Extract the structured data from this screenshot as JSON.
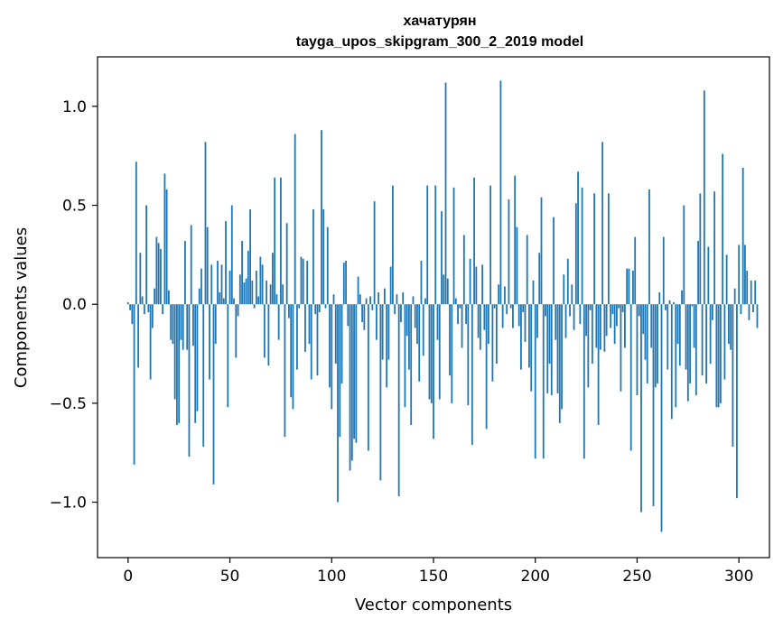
{
  "chart_data": {
    "type": "bar",
    "title": "хачатурян",
    "subtitle": "tayga_upos_skipgram_300_2_2019 model",
    "xlabel": "Vector components",
    "ylabel": "Components values",
    "xlim": [
      -15,
      315
    ],
    "ylim": [
      -1.28,
      1.25
    ],
    "xticks": [
      0,
      50,
      100,
      150,
      200,
      250,
      300
    ],
    "xtick_labels": [
      "0",
      "50",
      "100",
      "150",
      "200",
      "250",
      "300"
    ],
    "yticks": [
      -1.0,
      -0.5,
      0.0,
      0.5,
      1.0
    ],
    "ytick_labels": [
      "−1.0",
      "−0.5",
      "0.0",
      "0.5",
      "1.0"
    ],
    "grid": false,
    "bar_color": "#1f77b4",
    "series": [
      {
        "values": [
          0.01,
          -0.03,
          -0.1,
          -0.81,
          0.72,
          -0.32,
          0.26,
          0.04,
          -0.05,
          0.5,
          -0.04,
          -0.38,
          -0.12,
          0.08,
          0.34,
          0.31,
          0.28,
          -0.05,
          0.66,
          0.58,
          0.07,
          -0.18,
          -0.2,
          -0.48,
          -0.61,
          -0.6,
          -0.18,
          -0.23,
          0.32,
          -0.23,
          -0.77,
          0.4,
          -0.21,
          -0.6,
          -0.54,
          0.08,
          0.18,
          -0.72,
          0.82,
          0.39,
          -0.38,
          0.2,
          -0.91,
          -0.2,
          0.22,
          0.06,
          0.2,
          0.03,
          0.42,
          -0.52,
          0.17,
          0.5,
          0.03,
          -0.27,
          -0.06,
          0.15,
          0.32,
          0.11,
          0.13,
          0.27,
          0.48,
          0.12,
          -0.02,
          0.17,
          0.04,
          0.24,
          0.2,
          -0.27,
          0.12,
          -0.31,
          0.1,
          0.26,
          0.64,
          0.05,
          -0.18,
          0.64,
          0.1,
          -0.67,
          0.41,
          -0.07,
          -0.47,
          -0.53,
          0.86,
          -0.33,
          -0.02,
          0.24,
          0.23,
          -0.24,
          0.22,
          -0.2,
          -0.38,
          0.48,
          -0.05,
          -0.36,
          -0.04,
          0.88,
          0.48,
          -0.02,
          0.39,
          -0.42,
          -0.53,
          0.05,
          -0.3,
          -1.0,
          -0.67,
          -0.4,
          0.21,
          0.22,
          -0.11,
          -0.84,
          -0.79,
          -0.68,
          -0.7,
          0.14,
          0.05,
          -0.09,
          -0.13,
          0.03,
          -0.74,
          0.04,
          -0.03,
          0.52,
          -0.18,
          0.06,
          -0.89,
          -0.28,
          0.08,
          -0.42,
          -0.28,
          0.19,
          0.6,
          -0.05,
          0.05,
          -0.97,
          -0.09,
          0.06,
          -0.52,
          -0.16,
          -0.33,
          -0.61,
          0.04,
          -0.12,
          -0.2,
          -0.39,
          0.22,
          -0.26,
          0.03,
          0.6,
          -0.48,
          -0.5,
          -0.68,
          0.6,
          -0.18,
          -0.48,
          0.47,
          0.15,
          1.12,
          0.13,
          -0.36,
          -0.5,
          0.59,
          0.03,
          -0.1,
          -0.02,
          -0.22,
          0.35,
          -0.1,
          -0.51,
          0.23,
          -0.71,
          0.64,
          0.19,
          -0.17,
          -0.23,
          0.2,
          -0.13,
          -0.63,
          -0.2,
          0.6,
          -0.39,
          -0.02,
          -0.3,
          0.1,
          1.13,
          -0.12,
          0.09,
          -0.05,
          0.53,
          -0.02,
          -0.12,
          0.65,
          0.39,
          -0.11,
          -0.33,
          -0.04,
          -0.19,
          0.35,
          -0.32,
          -0.44,
          0.12,
          -0.78,
          -0.17,
          0.26,
          0.54,
          -0.78,
          -0.06,
          -0.45,
          -0.3,
          -0.46,
          0.44,
          -0.18,
          -0.45,
          -0.6,
          -0.53,
          0.15,
          -0.17,
          0.23,
          -0.06,
          0.1,
          -0.13,
          0.51,
          0.67,
          -0.1,
          0.59,
          -0.78,
          -0.16,
          -0.42,
          -0.03,
          -0.3,
          0.56,
          -0.22,
          -0.61,
          -0.23,
          0.82,
          -0.24,
          -0.16,
          0.56,
          -0.12,
          -0.05,
          -0.2,
          -0.11,
          -0.02,
          -0.44,
          -0.04,
          -0.22,
          0.18,
          0.18,
          -0.74,
          0.17,
          0.34,
          -0.46,
          -0.06,
          -1.05,
          -0.15,
          -0.28,
          -0.4,
          0.58,
          -0.22,
          -1.02,
          -0.42,
          -0.4,
          0.06,
          -1.15,
          0.34,
          -0.03,
          -0.33,
          0.02,
          -0.58,
          0.01,
          -0.52,
          -0.2,
          -0.31,
          0.07,
          0.5,
          -0.33,
          -0.49,
          -0.4,
          -0.01,
          -0.22,
          -0.46,
          0.32,
          0.56,
          -0.36,
          1.08,
          -0.4,
          0.29,
          -0.3,
          -0.08,
          0.57,
          -0.52,
          -0.52,
          -0.5,
          0.76,
          -0.38,
          0.25,
          -0.2,
          -0.23,
          -0.72,
          0.08,
          -0.98,
          0.3,
          -0.05,
          0.69,
          0.3,
          0.17,
          -0.08,
          0.12,
          -0.04,
          0.12,
          -0.12
        ]
      }
    ]
  }
}
